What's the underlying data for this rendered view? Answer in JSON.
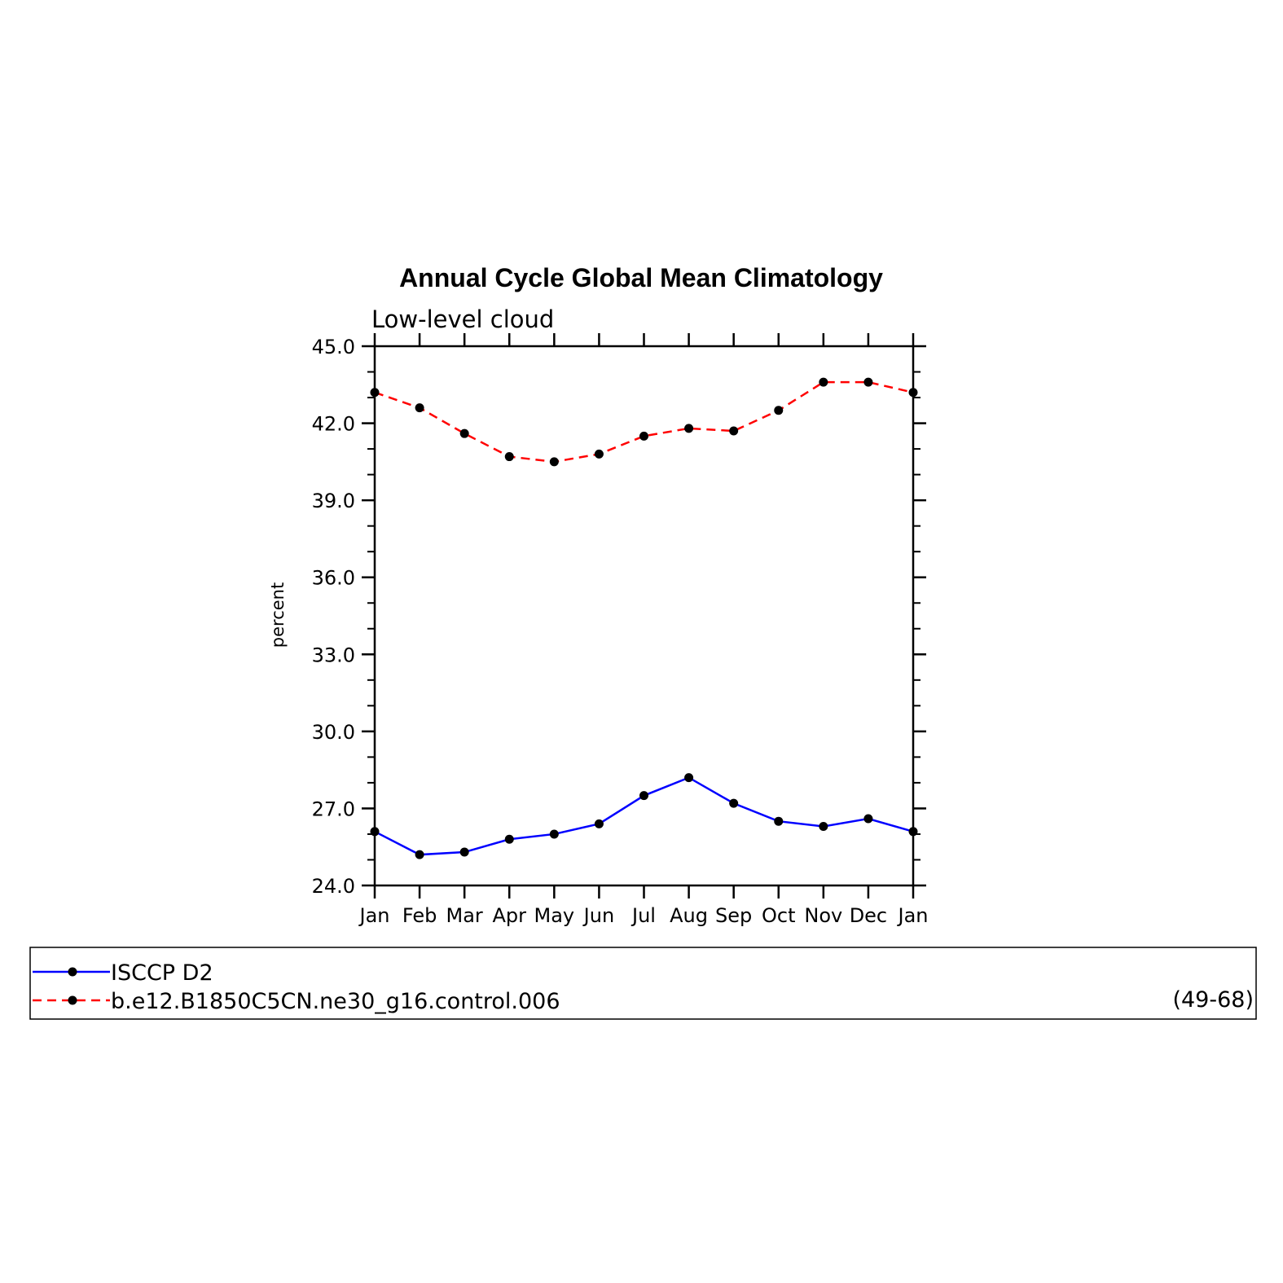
{
  "chart_data": {
    "type": "line",
    "title": "Annual Cycle Global Mean Climatology",
    "subtitle": "Low-level cloud",
    "ylabel": "percent",
    "xlabel": "",
    "categories": [
      "Jan",
      "Feb",
      "Mar",
      "Apr",
      "May",
      "Jun",
      "Jul",
      "Aug",
      "Sep",
      "Oct",
      "Nov",
      "Dec",
      "Jan"
    ],
    "ylim": [
      24.0,
      45.0
    ],
    "yticks": [
      "24.0",
      "27.0",
      "30.0",
      "33.0",
      "36.0",
      "39.0",
      "42.0",
      "45.0"
    ],
    "ytick_values": [
      24,
      27,
      30,
      33,
      36,
      39,
      42,
      45
    ],
    "series": [
      {
        "name": "ISCCP D2",
        "color": "#0000ff",
        "dash": "solid",
        "marker": "dot",
        "values": [
          26.1,
          25.2,
          25.3,
          25.8,
          26.0,
          26.4,
          27.5,
          28.2,
          27.2,
          26.5,
          26.3,
          26.6,
          26.1
        ]
      },
      {
        "name": "b.e12.B1850C5CN.ne30_g16.control.006",
        "color": "#ff0000",
        "dash": "dashed",
        "marker": "dot",
        "values": [
          43.2,
          42.6,
          41.6,
          40.7,
          40.5,
          40.8,
          41.5,
          41.8,
          41.7,
          42.5,
          43.6,
          43.6,
          43.2
        ]
      }
    ],
    "legend": {
      "placement": "bottom",
      "note": "(49-68)"
    },
    "grid": false
  }
}
